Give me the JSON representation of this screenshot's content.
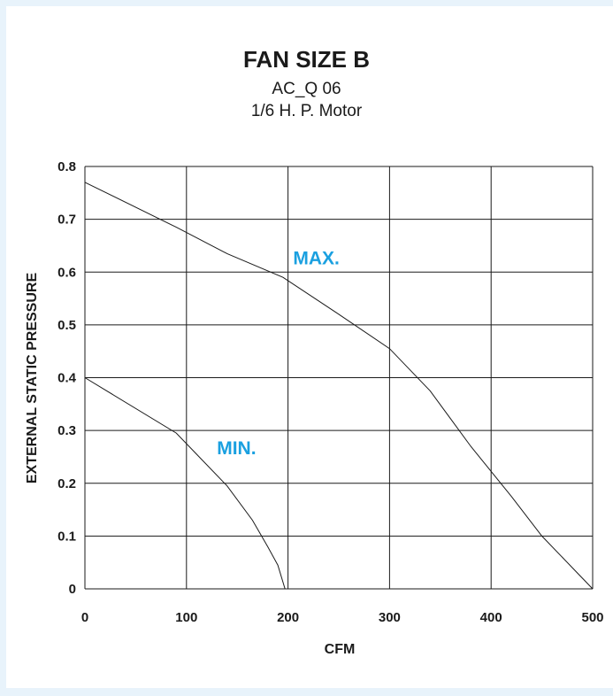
{
  "chart_data": {
    "type": "line",
    "title": "FAN SIZE B",
    "subtitle": [
      "AC_Q 06",
      "1/6 H. P. Motor"
    ],
    "xlabel": "CFM",
    "ylabel": "EXTERNAL STATIC PRESSURE",
    "xlim": [
      0,
      500
    ],
    "ylim": [
      0,
      0.8
    ],
    "x_ticks": [
      "0",
      "100",
      "200",
      "300",
      "400",
      "500"
    ],
    "y_ticks": [
      "0",
      "0.1",
      "0.2",
      "0.3",
      "0.4",
      "0.5",
      "0.6",
      "0.7",
      "0.8"
    ],
    "grid": true,
    "series": [
      {
        "name": "MAX.",
        "points": [
          [
            0,
            0.77
          ],
          [
            90,
            0.685
          ],
          [
            140,
            0.635
          ],
          [
            195,
            0.59
          ],
          [
            250,
            0.52
          ],
          [
            300,
            0.455
          ],
          [
            340,
            0.375
          ],
          [
            380,
            0.27
          ],
          [
            420,
            0.175
          ],
          [
            450,
            0.1
          ],
          [
            480,
            0.04
          ],
          [
            500,
            0.0
          ]
        ]
      },
      {
        "name": "MIN.",
        "points": [
          [
            0,
            0.4
          ],
          [
            90,
            0.295
          ],
          [
            110,
            0.255
          ],
          [
            140,
            0.195
          ],
          [
            165,
            0.13
          ],
          [
            180,
            0.08
          ],
          [
            190,
            0.045
          ],
          [
            197,
            0.0
          ]
        ]
      }
    ],
    "label_color": "#1aa0e0",
    "line_color": "#1a1a1a",
    "grid_color": "#1a1a1a"
  }
}
